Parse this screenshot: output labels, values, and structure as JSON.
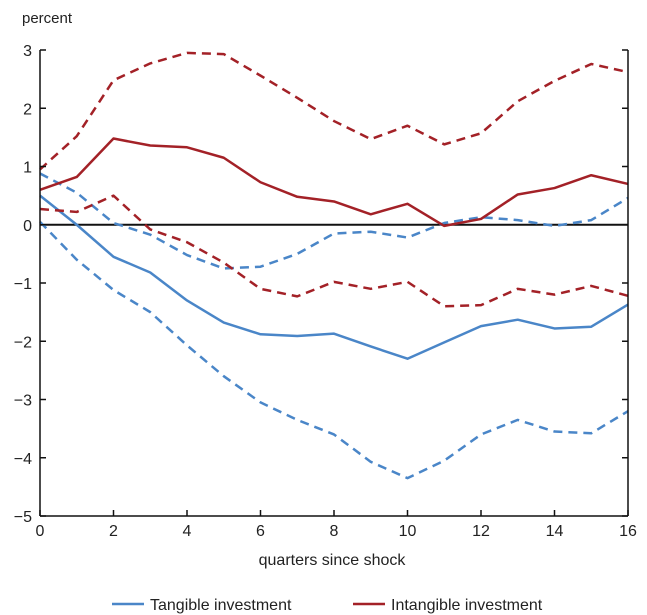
{
  "chart_data": {
    "type": "line",
    "ylabel": "percent",
    "xlabel": "quarters since shock",
    "xlim": [
      0,
      16
    ],
    "ylim": [
      -5,
      3
    ],
    "xticks": [
      0,
      2,
      4,
      6,
      8,
      10,
      12,
      14,
      16
    ],
    "yticks": [
      3,
      2,
      1,
      0,
      -1,
      -2,
      -3,
      -4,
      -5
    ],
    "ytick_labels": [
      "3",
      "2",
      "1",
      "0",
      "−1",
      "−2",
      "−3",
      "−4",
      "−5"
    ],
    "grid": false,
    "legend_position": "bottom",
    "x": [
      0,
      1,
      2,
      3,
      4,
      5,
      6,
      7,
      8,
      9,
      10,
      11,
      12,
      13,
      14,
      15,
      16
    ],
    "series": [
      {
        "name": "Tangible investment",
        "color": "#4a86c8",
        "style": "solid",
        "legend": true,
        "values": [
          0.5,
          0.0,
          -0.55,
          -0.82,
          -1.3,
          -1.68,
          -1.88,
          -1.91,
          -1.87,
          -2.09,
          -2.3,
          -2.02,
          -1.74,
          -1.63,
          -1.78,
          -1.75,
          -1.37
        ]
      },
      {
        "group": "Tangible investment",
        "color": "#4a86c8",
        "style": "dashed",
        "legend": false,
        "values": [
          0.88,
          0.55,
          0.03,
          -0.17,
          -0.52,
          -0.75,
          -0.72,
          -0.5,
          -0.15,
          -0.12,
          -0.22,
          0.03,
          0.13,
          0.08,
          -0.02,
          0.08,
          0.46
        ]
      },
      {
        "group": "Tangible investment",
        "color": "#4a86c8",
        "style": "dashed",
        "legend": false,
        "values": [
          0.05,
          -0.6,
          -1.12,
          -1.5,
          -2.07,
          -2.6,
          -3.05,
          -3.35,
          -3.6,
          -4.07,
          -4.35,
          -4.05,
          -3.6,
          -3.35,
          -3.55,
          -3.58,
          -3.2
        ]
      },
      {
        "name": "Intangible investment",
        "color": "#a32127",
        "style": "solid",
        "legend": true,
        "values": [
          0.6,
          0.82,
          1.48,
          1.36,
          1.33,
          1.15,
          0.73,
          0.48,
          0.4,
          0.18,
          0.36,
          -0.02,
          0.1,
          0.52,
          0.63,
          0.85,
          0.7
        ]
      },
      {
        "group": "Intangible investment",
        "color": "#a32127",
        "style": "dashed",
        "legend": false,
        "values": [
          0.95,
          1.52,
          2.48,
          2.77,
          2.95,
          2.93,
          2.56,
          2.18,
          1.78,
          1.47,
          1.7,
          1.38,
          1.57,
          2.12,
          2.47,
          2.76,
          2.62
        ]
      },
      {
        "group": "Intangible investment",
        "color": "#a32127",
        "style": "dashed",
        "legend": false,
        "values": [
          0.27,
          0.22,
          0.5,
          -0.08,
          -0.3,
          -0.65,
          -1.1,
          -1.23,
          -0.98,
          -1.1,
          -0.98,
          -1.4,
          -1.38,
          -1.1,
          -1.2,
          -1.05,
          -1.22
        ]
      }
    ]
  }
}
